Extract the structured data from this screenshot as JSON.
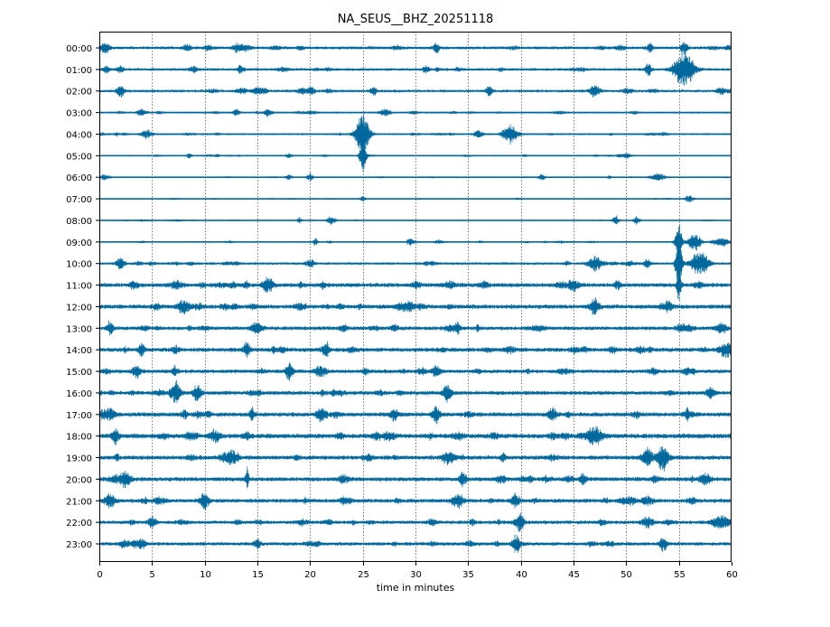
{
  "chart_data": {
    "type": "line",
    "subtype": "helicorder",
    "title": "NA_SEUS__BHZ_20251118",
    "xlabel": "time in minutes",
    "ylabel": "",
    "xlim": [
      0,
      60
    ],
    "x_ticks": [
      "0",
      "5",
      "10",
      "15",
      "20",
      "25",
      "30",
      "35",
      "40",
      "45",
      "50",
      "55",
      "60"
    ],
    "x_tick_values": [
      0,
      5,
      10,
      15,
      20,
      25,
      30,
      35,
      40,
      45,
      50,
      55,
      60
    ],
    "vertical_grid": "dotted",
    "trace_color": "#00689c",
    "rows": [
      {
        "label": "00:00",
        "noise": 3.2,
        "events": [
          [
            0.5,
            6,
            0.5
          ],
          [
            8.3,
            4,
            0.4
          ],
          [
            13,
            5,
            0.3
          ],
          [
            32,
            6,
            0.3
          ],
          [
            55.5,
            8,
            0.3
          ]
        ]
      },
      {
        "label": "01:00",
        "noise": 3.0,
        "events": [
          [
            2,
            4,
            0.3
          ],
          [
            9,
            4,
            0.4
          ],
          [
            31,
            4,
            0.3
          ],
          [
            55.5,
            22,
            0.9
          ]
        ]
      },
      {
        "label": "02:00",
        "noise": 3.0,
        "events": [
          [
            2,
            10,
            0.3
          ],
          [
            15,
            4,
            0.5
          ],
          [
            26,
            6,
            0.3
          ],
          [
            37,
            6,
            0.3
          ],
          [
            47,
            4,
            0.4
          ],
          [
            59,
            4,
            0.4
          ]
        ]
      },
      {
        "label": "03:00",
        "noise": 2.0,
        "events": [
          [
            4,
            5,
            0.4
          ],
          [
            13,
            4,
            0.3
          ],
          [
            16,
            4,
            0.4
          ],
          [
            27,
            4,
            0.4
          ]
        ]
      },
      {
        "label": "04:00",
        "noise": 2.0,
        "events": [
          [
            4.5,
            5,
            0.5
          ],
          [
            25,
            32,
            0.6
          ],
          [
            36,
            5,
            0.4
          ],
          [
            39,
            12,
            0.7
          ]
        ]
      },
      {
        "label": "05:00",
        "noise": 1.5,
        "events": [
          [
            8.5,
            3,
            0.2
          ],
          [
            18,
            3,
            0.3
          ],
          [
            25,
            20,
            0.3
          ],
          [
            50,
            3,
            0.5
          ]
        ]
      },
      {
        "label": "06:00",
        "noise": 1.2,
        "events": [
          [
            0.5,
            3,
            0.5
          ],
          [
            18,
            3,
            0.3
          ],
          [
            20,
            5,
            0.3
          ],
          [
            42,
            4,
            0.3
          ],
          [
            53,
            4,
            0.8
          ]
        ]
      },
      {
        "label": "07:00",
        "noise": 1.0,
        "events": [
          [
            25,
            3,
            0.3
          ],
          [
            56,
            5,
            0.4
          ]
        ]
      },
      {
        "label": "08:00",
        "noise": 1.0,
        "events": [
          [
            19,
            4,
            0.2
          ],
          [
            22,
            6,
            0.4
          ],
          [
            49,
            6,
            0.3
          ],
          [
            51,
            5,
            0.3
          ]
        ]
      },
      {
        "label": "09:00",
        "noise": 1.5,
        "events": [
          [
            20.5,
            5,
            0.2
          ],
          [
            29.5,
            5,
            0.3
          ],
          [
            55,
            26,
            0.3
          ],
          [
            56.5,
            12,
            0.6
          ],
          [
            59,
            5,
            0.8
          ]
        ]
      },
      {
        "label": "10:00",
        "noise": 2.8,
        "events": [
          [
            2,
            7,
            0.4
          ],
          [
            20,
            5,
            0.4
          ],
          [
            47,
            9,
            0.6
          ],
          [
            52,
            6,
            0.3
          ],
          [
            55,
            32,
            0.3
          ],
          [
            57,
            15,
            0.8
          ]
        ]
      },
      {
        "label": "11:00",
        "noise": 4.5,
        "events": [
          [
            16,
            9,
            0.5
          ],
          [
            45,
            6,
            0.5
          ],
          [
            55,
            18,
            0.2
          ]
        ]
      },
      {
        "label": "12:00",
        "noise": 4.5,
        "events": [
          [
            8,
            8,
            0.6
          ],
          [
            47,
            10,
            0.4
          ],
          [
            54,
            7,
            0.4
          ]
        ]
      },
      {
        "label": "13:00",
        "noise": 4.0,
        "events": [
          [
            1,
            8,
            0.3
          ],
          [
            15,
            6,
            0.5
          ],
          [
            34,
            7,
            0.3
          ],
          [
            59,
            7,
            0.5
          ]
        ]
      },
      {
        "label": "14:00",
        "noise": 4.5,
        "events": [
          [
            4,
            7,
            0.3
          ],
          [
            14,
            9,
            0.3
          ],
          [
            21.5,
            10,
            0.3
          ],
          [
            59.5,
            10,
            0.6
          ]
        ]
      },
      {
        "label": "15:00",
        "noise": 4.0,
        "events": [
          [
            3.5,
            7,
            0.4
          ],
          [
            18,
            9,
            0.3
          ],
          [
            21,
            7,
            0.5
          ],
          [
            32,
            6,
            0.4
          ]
        ]
      },
      {
        "label": "16:00",
        "noise": 4.2,
        "events": [
          [
            7.3,
            11,
            0.4
          ],
          [
            9.3,
            9,
            0.4
          ],
          [
            33,
            10,
            0.4
          ],
          [
            58,
            6,
            0.4
          ]
        ]
      },
      {
        "label": "17:00",
        "noise": 4.5,
        "events": [
          [
            1,
            7,
            0.5
          ],
          [
            14.5,
            9,
            0.2
          ],
          [
            21,
            8,
            0.4
          ],
          [
            32,
            10,
            0.3
          ],
          [
            43,
            8,
            0.4
          ]
        ]
      },
      {
        "label": "18:00",
        "noise": 5.0,
        "events": [
          [
            1.5,
            10,
            0.3
          ],
          [
            11,
            7,
            0.5
          ],
          [
            47,
            10,
            0.8
          ]
        ]
      },
      {
        "label": "19:00",
        "noise": 4.5,
        "events": [
          [
            12.5,
            10,
            0.5
          ],
          [
            33,
            7,
            0.5
          ],
          [
            52,
            10,
            0.5
          ],
          [
            53.5,
            11,
            0.5
          ]
        ]
      },
      {
        "label": "20:00",
        "noise": 4.5,
        "events": [
          [
            2.5,
            8,
            0.5
          ],
          [
            34.5,
            9,
            0.3
          ],
          [
            57.5,
            7,
            0.5
          ]
        ]
      },
      {
        "label": "21:00",
        "noise": 4.2,
        "events": [
          [
            1,
            7,
            0.5
          ],
          [
            10,
            10,
            0.4
          ],
          [
            34,
            10,
            0.5
          ],
          [
            39.5,
            8,
            0.4
          ]
        ]
      },
      {
        "label": "22:00",
        "noise": 3.8,
        "events": [
          [
            5,
            6,
            0.4
          ],
          [
            40,
            10,
            0.3
          ],
          [
            52,
            6,
            0.5
          ],
          [
            59,
            9,
            0.8
          ]
        ]
      },
      {
        "label": "23:00",
        "noise": 3.8,
        "events": [
          [
            4,
            6,
            0.4
          ],
          [
            15,
            7,
            0.3
          ],
          [
            39.5,
            6,
            0.4
          ],
          [
            53.5,
            11,
            0.3
          ]
        ]
      }
    ]
  }
}
